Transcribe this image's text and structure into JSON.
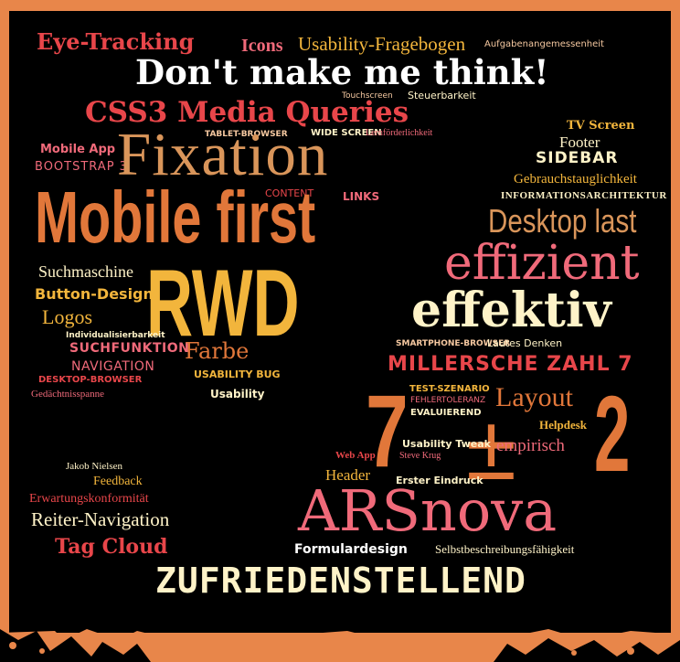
{
  "colors": {
    "background_border": "#e8864a",
    "board": "#000000",
    "red": "#e8464a",
    "pink": "#f06a7a",
    "orange": "#ec8a43",
    "dark_orange": "#e1773a",
    "gold": "#f2b53c",
    "tan": "#d9955a",
    "cream": "#fff3c8",
    "white": "#ffffff",
    "peach": "#f6c9a1"
  },
  "words": {
    "eye_tracking": "Eye-Tracking",
    "icons": "Icons",
    "usability_fragebogen": "Usability-Fragebogen",
    "aufgabenangemessenheit": "Aufgabenangemessenheit",
    "dont_make_me_think": "Don't make me think!",
    "touchscreen": "Touchscreen",
    "steuerbarkeit": "Steuerbarkeit",
    "css3_media_queries": "CSS3 Media Queries",
    "tablet_browser": "TABLET-BROWSER",
    "wide_screen": "WIDE SCREEN",
    "lernfoerderlichkeit": "Lernförderlichkeit",
    "mobile_app": "Mobile App",
    "bootstrap_3": "BOOTSTRAP 3",
    "fixation": "Fixation",
    "content": "CONTENT",
    "links": "LINKS",
    "mobile_first": "Mobile first",
    "tv_screen": "TV Screen",
    "footer": "Footer",
    "sidebar": "SIDEBAR",
    "gebrauchstauglichkeit": "Gebrauchstauglichkeit",
    "informationsarchitektur": "INFORMATIONSARCHITEKTUR",
    "desktop_last": "Desktop last",
    "effizient": "effizient",
    "effektiv": "effektiv",
    "suchmaschine": "Suchmaschine",
    "button_design": "Button-Design",
    "logos": "Logos",
    "rwd": "RWD",
    "individualisierbarkeit": "Individualisierbarkeit",
    "suchfunktion": "SUCHFUNKTION",
    "navigation": "NAVIGATION",
    "farbe": "Farbe",
    "usability_bug": "USABILITY BUG",
    "usability": "Usability",
    "desktop_browser": "DESKTOP-BROWSER",
    "gedaechtnisspanne": "Gedächtnisspanne",
    "smartphone_browser": "SMARTPHONE-BROWSER",
    "lautes_denken": "Lautes Denken",
    "millersche_zahl": "MILLERSCHE ZAHL 7",
    "test_szenario": "TEST-SZENARIO",
    "fehlertoleranz": "FEHLERTOLERANZ",
    "evaluierend": "EVALUIEREND",
    "seven": "7",
    "plus_minus": "±",
    "layout": "Layout",
    "two": "2",
    "helpdesk": "Helpdesk",
    "empirisch": "empirisch",
    "usability_tweak": "Usability Tweak",
    "steve_krug": "Steve Krug",
    "web_app": "Web App",
    "header": "Header",
    "erster_eindruck": "Erster Eindruck",
    "jakob_nielsen": "Jakob Nielsen",
    "feedback": "Feedback",
    "erwartungskonformitaet": "Erwartungskonformität",
    "reiter_navigation": "Reiter-Navigation",
    "tag_cloud": "Tag Cloud",
    "arsnova": "ARSnova",
    "formulardesign": "Formulardesign",
    "selbstbeschreibungsfaehigkeit": "Selbstbeschreibungsfähigkeit",
    "zufriedenstellend": "ZUFRIEDENSTELLEND"
  }
}
